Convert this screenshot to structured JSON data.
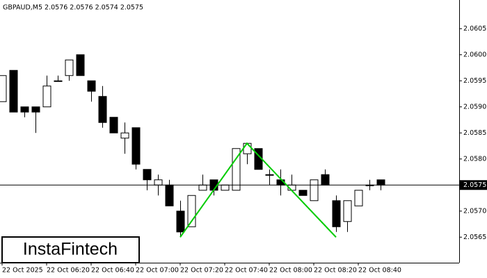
{
  "chart_data": {
    "type": "candlestick",
    "title": "GBPAUD,M5  2.0576 2.0576 2.0574 2.0575",
    "categories": [
      "22 Oct 2025",
      null,
      null,
      null,
      "22 Oct 06:20",
      null,
      null,
      null,
      "22 Oct 06:40",
      null,
      null,
      null,
      "22 Oct 07:00",
      null,
      null,
      null,
      "22 Oct 07:20",
      null,
      null,
      null,
      "22 Oct 07:40",
      null,
      null,
      null,
      "22 Oct 08:00",
      null,
      null,
      null,
      "22 Oct 08:20",
      null,
      null,
      null,
      "22 Oct 08:40",
      null,
      null
    ],
    "open": [
      2.0591,
      2.0597,
      2.059,
      2.059,
      2.059,
      2.0595,
      2.0596,
      2.06,
      2.0595,
      2.0592,
      2.0588,
      2.0584,
      2.0586,
      2.0578,
      2.0575,
      2.0575,
      2.057,
      2.0567,
      2.0574,
      2.0576,
      2.0574,
      2.0574,
      2.0581,
      2.0582,
      2.0577,
      2.0576,
      2.0574,
      2.0574,
      2.0572,
      2.0577,
      2.0572,
      2.0568,
      2.0571,
      2.0575,
      2.0576
    ],
    "high": [
      2.0596,
      2.0597,
      2.059,
      2.059,
      2.0596,
      2.0596,
      2.0599,
      2.06,
      2.0595,
      2.0594,
      2.0588,
      2.0587,
      2.0586,
      2.0578,
      2.0577,
      2.0576,
      2.0572,
      2.0573,
      2.0577,
      2.0576,
      2.0575,
      2.0582,
      2.0583,
      2.0582,
      2.0578,
      2.0578,
      2.0577,
      2.0574,
      2.0576,
      2.0578,
      2.0573,
      2.0572,
      2.0574,
      2.0576,
      2.0576
    ],
    "low": [
      2.0591,
      2.0589,
      2.0588,
      2.0585,
      2.059,
      2.0595,
      2.0595,
      2.0596,
      2.0591,
      2.0586,
      2.0585,
      2.0581,
      2.0578,
      2.0574,
      2.0573,
      2.0571,
      2.0565,
      2.0567,
      2.0574,
      2.0573,
      2.0574,
      2.0574,
      2.0579,
      2.0578,
      2.0575,
      2.0573,
      2.0574,
      2.0573,
      2.0572,
      2.0575,
      2.0566,
      2.0566,
      2.0571,
      2.0574,
      2.0574
    ],
    "close": [
      2.0596,
      2.0589,
      2.0589,
      2.0589,
      2.0594,
      2.0595,
      2.0599,
      2.0596,
      2.0593,
      2.0587,
      2.0585,
      2.0585,
      2.0579,
      2.0576,
      2.0576,
      2.0571,
      2.0566,
      2.0573,
      2.0575,
      2.0574,
      2.0575,
      2.0582,
      2.0583,
      2.0578,
      2.0577,
      2.0575,
      2.0575,
      2.0573,
      2.0576,
      2.0575,
      2.0567,
      2.0572,
      2.0574,
      2.0575,
      2.0575
    ],
    "pattern": {
      "color": "#00cc00",
      "x": [
        16,
        22,
        30
      ],
      "values": [
        2.0565,
        2.0583,
        2.0565
      ]
    },
    "current_price": 2.0575,
    "ylim": [
      2.05601,
      2.06105
    ],
    "yticks": [
      2.0565,
      {
        "value": 2.057,
        "label": "2.0570"
      },
      2.0575,
      {
        "value": 2.058,
        "label": "2.0580"
      },
      2.0585,
      {
        "value": 2.059,
        "label": "2.0590"
      },
      2.0595,
      {
        "value": 2.06,
        "label": "2.0600"
      },
      2.0605
    ]
  },
  "brand": "InstaFintech"
}
